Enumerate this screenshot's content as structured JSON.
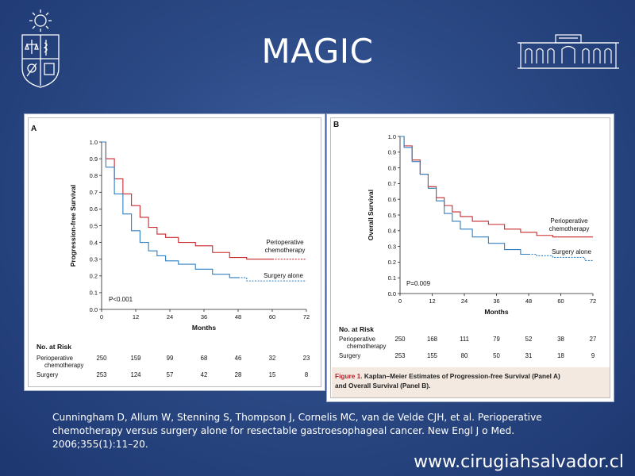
{
  "slide": {
    "title": "MAGIC",
    "citation": "Cunningham D, Allum W, Stenning S, Thompson J, Cornelis MC, van de Velde CJH, et al. Perioperative chemotherapy versus surgery alone for resectable gastroesophageal cancer. New Engl J o Med. 2006;355(1):11–20.",
    "website": "www.cirugiahsalvador.cl"
  },
  "colors": {
    "chemo": "#c8282d",
    "surgery": "#2f7fc1",
    "caption_red": "#b5232b"
  },
  "icons": {
    "left_logo": "university-seal-icon",
    "right_logo": "building-facade-icon"
  },
  "chart_data": [
    {
      "type": "line",
      "panel_label": "A",
      "ylabel": "Progression-free Survival",
      "xlabel": "Months",
      "xlim": [
        0,
        72
      ],
      "ylim": [
        0,
        1.0
      ],
      "xticks": [
        0,
        12,
        24,
        36,
        48,
        60,
        72
      ],
      "yticks": [
        0.0,
        0.1,
        0.2,
        0.3,
        0.4,
        0.5,
        0.6,
        0.7,
        0.8,
        0.9,
        1.0
      ],
      "x": [
        0,
        3,
        6,
        9,
        12,
        15,
        18,
        21,
        24,
        30,
        36,
        42,
        48,
        54,
        60,
        66,
        72
      ],
      "series": [
        {
          "name": "Perioperative chemotherapy",
          "label": [
            "Perioperative",
            "chemotherapy"
          ],
          "color": "#c8282d",
          "dashed_from": 60,
          "values": [
            1.0,
            0.9,
            0.78,
            0.69,
            0.62,
            0.55,
            0.49,
            0.45,
            0.43,
            0.4,
            0.38,
            0.34,
            0.31,
            0.3,
            0.3,
            0.3,
            0.3
          ]
        },
        {
          "name": "Surgery alone",
          "label": [
            "Surgery alone"
          ],
          "color": "#2f7fc1",
          "dashed_from": 48,
          "values": [
            1.0,
            0.85,
            0.69,
            0.57,
            0.47,
            0.4,
            0.35,
            0.32,
            0.29,
            0.27,
            0.24,
            0.21,
            0.19,
            0.17,
            0.17,
            0.17,
            0.17
          ]
        }
      ],
      "annotation": "P<0.001",
      "risk_table": {
        "title": "No. at Risk",
        "times": [
          0,
          12,
          24,
          36,
          48,
          60,
          72
        ],
        "rows": [
          {
            "label": [
              "Perioperative",
              "chemotherapy"
            ],
            "values": [
              "250",
              "159",
              "99",
              "68",
              "46",
              "32",
              "23"
            ]
          },
          {
            "label": [
              "Surgery"
            ],
            "values": [
              "253",
              "124",
              "57",
              "42",
              "28",
              "15",
              "8"
            ]
          }
        ]
      }
    },
    {
      "type": "line",
      "panel_label": "B",
      "ylabel": "Overall Survival",
      "xlabel": "Months",
      "xlim": [
        0,
        72
      ],
      "ylim": [
        0,
        1.0
      ],
      "xticks": [
        0,
        12,
        24,
        36,
        48,
        60,
        72
      ],
      "yticks": [
        0.0,
        0.1,
        0.2,
        0.3,
        0.4,
        0.5,
        0.6,
        0.7,
        0.8,
        0.9,
        1.0
      ],
      "x": [
        0,
        3,
        6,
        9,
        12,
        15,
        18,
        21,
        24,
        30,
        36,
        42,
        48,
        54,
        60,
        66,
        72
      ],
      "series": [
        {
          "name": "Perioperative chemotherapy",
          "label": [
            "Perioperative",
            "chemotherapy"
          ],
          "color": "#c8282d",
          "dashed_from": 72,
          "values": [
            1.0,
            0.94,
            0.85,
            0.76,
            0.68,
            0.61,
            0.56,
            0.52,
            0.49,
            0.46,
            0.44,
            0.41,
            0.39,
            0.37,
            0.36,
            0.36,
            0.36
          ]
        },
        {
          "name": "Surgery alone",
          "label": [
            "Surgery alone"
          ],
          "color": "#2f7fc1",
          "dashed_from": 48,
          "values": [
            1.0,
            0.93,
            0.84,
            0.76,
            0.67,
            0.59,
            0.51,
            0.46,
            0.41,
            0.36,
            0.32,
            0.28,
            0.25,
            0.24,
            0.23,
            0.23,
            0.21
          ]
        }
      ],
      "annotation": "P=0.009",
      "risk_table": {
        "title": "No. at Risk",
        "times": [
          0,
          12,
          24,
          36,
          48,
          60,
          72
        ],
        "rows": [
          {
            "label": [
              "Perioperative",
              "chemotherapy"
            ],
            "values": [
              "250",
              "168",
              "111",
              "79",
              "52",
              "38",
              "27"
            ]
          },
          {
            "label": [
              "Surgery"
            ],
            "values": [
              "253",
              "155",
              "80",
              "50",
              "31",
              "18",
              "9"
            ]
          }
        ]
      },
      "caption": {
        "label": "Figure 1.",
        "text_line1": "Kaplan–Meier Estimates of Progression-free Survival (Panel A)",
        "text_line2": "and Overall Survival (Panel B)."
      }
    }
  ]
}
